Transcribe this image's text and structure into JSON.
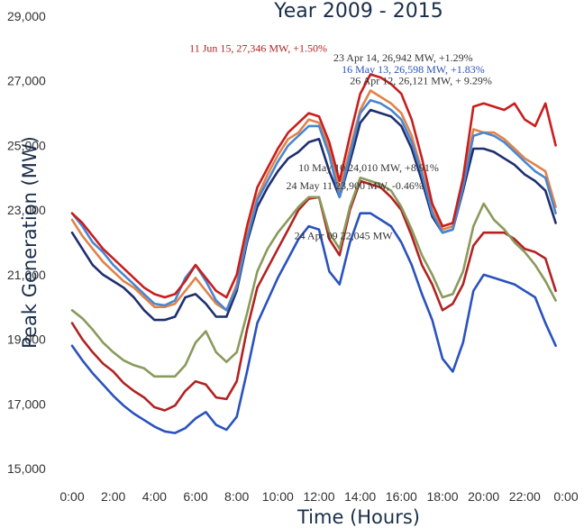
{
  "chart_data": {
    "type": "line",
    "title": "Year 2009 - 2015",
    "xlabel": "Time (Hours)",
    "ylabel": "Peak Generation (MW)",
    "x": [
      0,
      0.5,
      1,
      1.5,
      2,
      2.5,
      3,
      3.5,
      4,
      4.5,
      5,
      5.5,
      6,
      6.5,
      7,
      7.5,
      8,
      8.5,
      9,
      9.5,
      10,
      10.5,
      11,
      11.5,
      12,
      12.5,
      13,
      13.5,
      14,
      14.5,
      15,
      15.5,
      16,
      16.5,
      17,
      17.5,
      18,
      18.5,
      19,
      19.5,
      20,
      20.5,
      21,
      21.5,
      22,
      22.5,
      23,
      23.5
    ],
    "xticks": [
      "0:00",
      "2:00",
      "4:00",
      "6:00",
      "8:00",
      "10:00",
      "12:00",
      "14:00",
      "16:00",
      "18:00",
      "20:00",
      "22:00",
      "0:00"
    ],
    "yticks": [
      "15,000",
      "17,000",
      "19,000",
      "21,000",
      "23,000",
      "25,000",
      "27,000",
      "29,000"
    ],
    "ylim": [
      15000,
      29000
    ],
    "xlim": [
      0,
      24
    ],
    "grid": false,
    "series": [
      {
        "color": "#2a52be",
        "values": [
          18800,
          18350,
          17950,
          17600,
          17250,
          16950,
          16700,
          16500,
          16300,
          16150,
          16100,
          16250,
          16550,
          16750,
          16350,
          16200,
          16600,
          18000,
          19500,
          20200,
          20900,
          21500,
          22100,
          22500,
          22400,
          21100,
          20700,
          22000,
          22900,
          22900,
          22700,
          22500,
          22000,
          21300,
          20400,
          19600,
          18400,
          18000,
          18900,
          20500,
          21000,
          20900,
          20800,
          20700,
          20500,
          20300,
          19500,
          18800
        ]
      },
      {
        "color": "#b22222",
        "values": [
          19500,
          19000,
          18600,
          18250,
          18000,
          17650,
          17400,
          17200,
          16900,
          16800,
          16950,
          17400,
          17700,
          17600,
          17200,
          17150,
          17700,
          19300,
          20600,
          21200,
          21800,
          22400,
          23000,
          23350,
          23400,
          22100,
          21600,
          23000,
          23900,
          23800,
          23700,
          23400,
          23000,
          22200,
          21300,
          20700,
          19900,
          20100,
          20700,
          21900,
          22300,
          22300,
          22300,
          22100,
          21800,
          21700,
          21500,
          20500
        ]
      },
      {
        "color": "#8a9a5b",
        "values": [
          19900,
          19650,
          19300,
          18900,
          18600,
          18350,
          18200,
          18100,
          17850,
          17850,
          17850,
          18200,
          18900,
          19250,
          18600,
          18300,
          18600,
          19800,
          21100,
          21800,
          22300,
          22700,
          23100,
          23400,
          23400,
          22300,
          21800,
          23100,
          24000,
          23900,
          23800,
          23600,
          23100,
          22400,
          21600,
          21000,
          20300,
          20400,
          21100,
          22500,
          23200,
          22700,
          22400,
          22000,
          21700,
          21300,
          20800,
          20200
        ]
      },
      {
        "color": "#1f2f6e",
        "values": [
          22300,
          21800,
          21300,
          21000,
          20800,
          20600,
          20300,
          19900,
          19600,
          19600,
          19700,
          20300,
          20400,
          20100,
          19700,
          19700,
          20500,
          22000,
          23100,
          23700,
          24200,
          24600,
          24800,
          25100,
          25200,
          24200,
          23400,
          24500,
          25700,
          26100,
          26000,
          25900,
          25600,
          24900,
          23900,
          22800,
          22300,
          22400,
          23600,
          24900,
          24900,
          24800,
          24600,
          24400,
          24100,
          23900,
          23600,
          22600
        ]
      },
      {
        "color": "#e0834a",
        "values": [
          22700,
          22200,
          21800,
          21400,
          21100,
          20800,
          20600,
          20300,
          20000,
          20000,
          20100,
          20500,
          20900,
          20500,
          20100,
          19900,
          20700,
          22200,
          23400,
          24100,
          24700,
          25200,
          25400,
          25800,
          25700,
          24900,
          23600,
          24900,
          26100,
          26700,
          26500,
          26300,
          26000,
          25300,
          24200,
          23000,
          22400,
          22500,
          23900,
          25500,
          25400,
          25400,
          25200,
          24900,
          24600,
          24400,
          24200,
          23100
        ]
      },
      {
        "color": "#4a86d0",
        "values": [
          22900,
          22500,
          22000,
          21700,
          21300,
          21000,
          20700,
          20400,
          20100,
          20050,
          20200,
          20900,
          21300,
          20800,
          20200,
          19900,
          20600,
          22100,
          23300,
          23900,
          24500,
          25000,
          25300,
          25600,
          25600,
          24700,
          23400,
          24700,
          26000,
          26400,
          26300,
          26100,
          25800,
          25100,
          24100,
          22900,
          22300,
          22400,
          23700,
          25300,
          25400,
          25300,
          25100,
          24800,
          24500,
          24200,
          24000,
          22900
        ]
      },
      {
        "color": "#c81e1e",
        "values": [
          22900,
          22600,
          22200,
          21800,
          21500,
          21200,
          20900,
          20600,
          20400,
          20300,
          20400,
          20800,
          21300,
          20900,
          20500,
          20300,
          21000,
          22500,
          23700,
          24300,
          24900,
          25400,
          25700,
          26000,
          25900,
          25100,
          23900,
          25300,
          26600,
          27200,
          27100,
          26900,
          26600,
          25800,
          24600,
          23200,
          22500,
          22600,
          24000,
          26200,
          26300,
          26200,
          26100,
          26300,
          25800,
          25600,
          26300,
          25000
        ]
      }
    ],
    "annotations": [
      {
        "text": "11 Jun 15, 27,346 MW, +1.50%",
        "color": "#b22222",
        "x": 5.7,
        "y": 27900
      },
      {
        "text": "23 Apr 14,  26,942 MW, +1.29%",
        "color": "#333333",
        "x": 12.7,
        "y": 27600
      },
      {
        "text": "16 May 13, 26,598 MW, +1.83%",
        "color": "#2a52be",
        "x": 13.1,
        "y": 27250
      },
      {
        "text": "26 Apr 12, 26,121 MW, + 9.29%",
        "color": "#333333",
        "x": 13.5,
        "y": 26900
      },
      {
        "text": "10 May 10     24,010 MW, +8.91%",
        "color": "#333333",
        "x": 11.0,
        "y": 24200
      },
      {
        "text": "24 May 11     23,900 MW, -0.46%",
        "color": "#333333",
        "x": 10.4,
        "y": 23650
      },
      {
        "text": "24 Apr 09     22,045 MW",
        "color": "#333333",
        "x": 10.8,
        "y": 22100
      }
    ]
  }
}
